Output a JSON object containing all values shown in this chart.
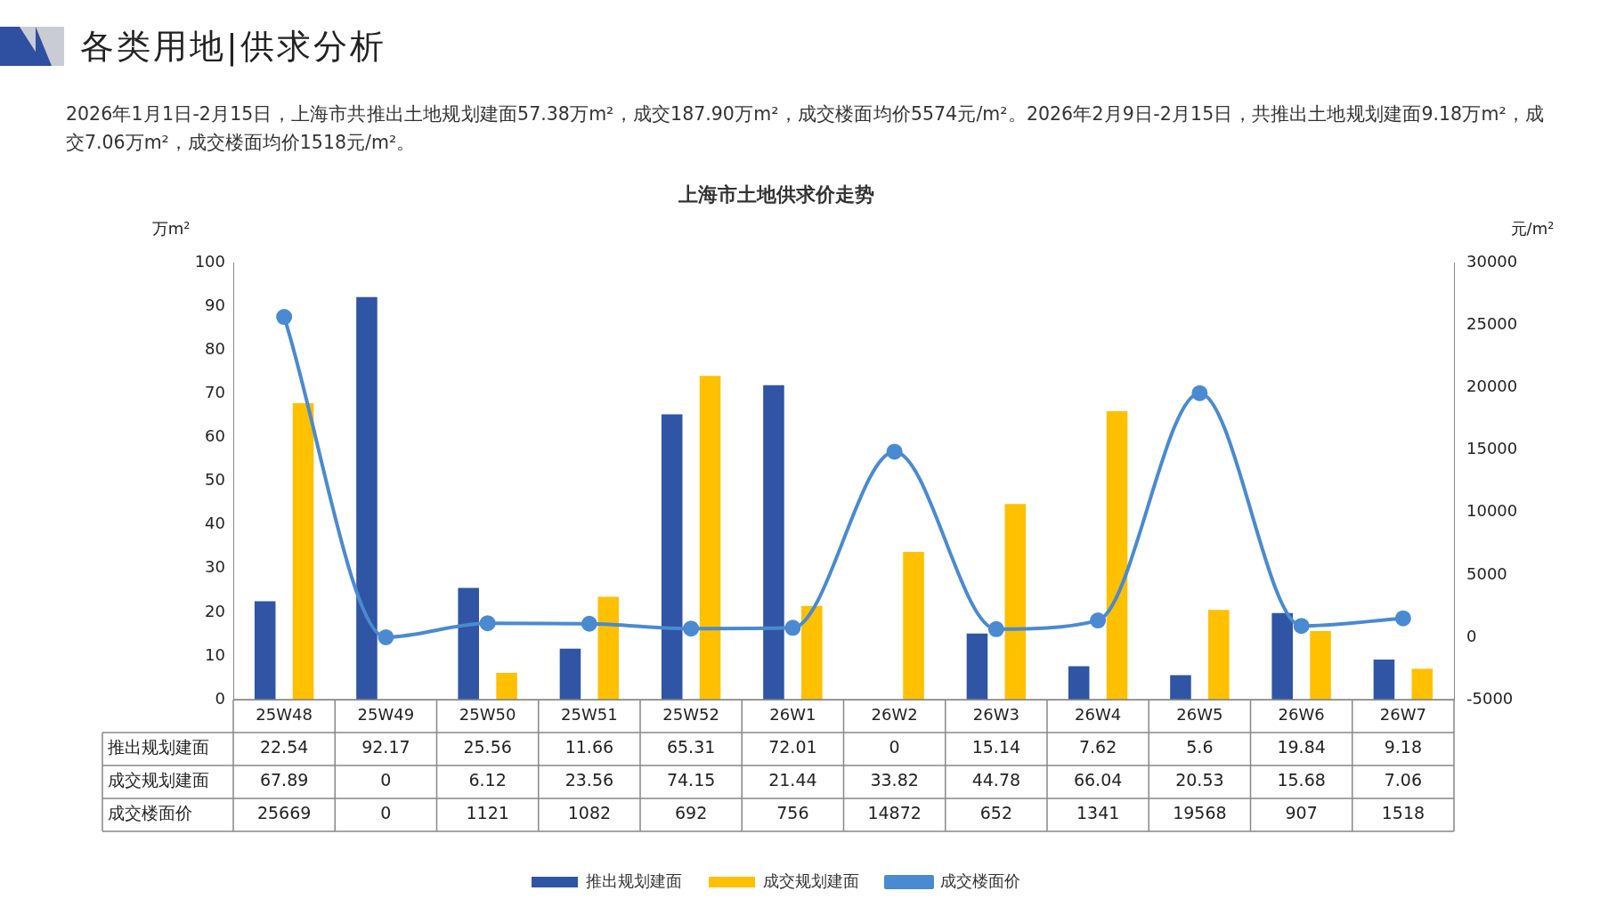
{
  "chart_data": {
    "type": "bar",
    "title": "上海市土地供求价走势",
    "subtitle": "2026年1月1日-2月15日，上海市共推出土地规划建面57.38万m²，成交187.90万m²，成交楼面均价5574元/m²。2026年2月9日-2月15日，共推出土地规划建面9.18万m²，成交7.06万m²，成交楼面均价1518元/m²。",
    "annotations": [
      "各类用地|供求分析"
    ],
    "ylabel": "万m²",
    "y2label": "元/m²",
    "categories": [
      "25W48",
      "25W49",
      "25W50",
      "25W51",
      "25W52",
      "26W1",
      "26W2",
      "26W3",
      "26W4",
      "26W5",
      "26W6",
      "26W7"
    ],
    "series": [
      {
        "name": "推出规划建面",
        "color": "#2f55a4",
        "values": [
          22.54,
          92.17,
          25.56,
          11.66,
          65.31,
          72.01,
          0,
          15.14,
          7.62,
          5.6,
          19.84,
          9.18
        ]
      },
      {
        "name": "成交规划建面",
        "color": "#ffc000",
        "values": [
          67.89,
          0,
          6.12,
          23.56,
          74.15,
          21.44,
          33.82,
          44.78,
          66.04,
          20.53,
          15.68,
          7.06
        ]
      },
      {
        "name": "成交楼面价",
        "type": "line",
        "axis": "y2",
        "color": "#4a8ad0",
        "marker": "circle",
        "values": [
          25669,
          0,
          1121,
          1082,
          692,
          756,
          14872,
          652,
          1341,
          19568,
          907,
          1518
        ]
      }
    ],
    "ylim": [
      0,
      100
    ],
    "yticks": [
      0,
      10,
      20,
      30,
      40,
      50,
      60,
      70,
      80,
      90,
      100
    ],
    "y2lim": [
      -5000,
      30000
    ],
    "y2ticks": [
      -5000,
      0,
      5000,
      10000,
      15000,
      20000,
      25000,
      30000
    ],
    "data_labels": true,
    "legend": "bottom",
    "grid": false
  }
}
